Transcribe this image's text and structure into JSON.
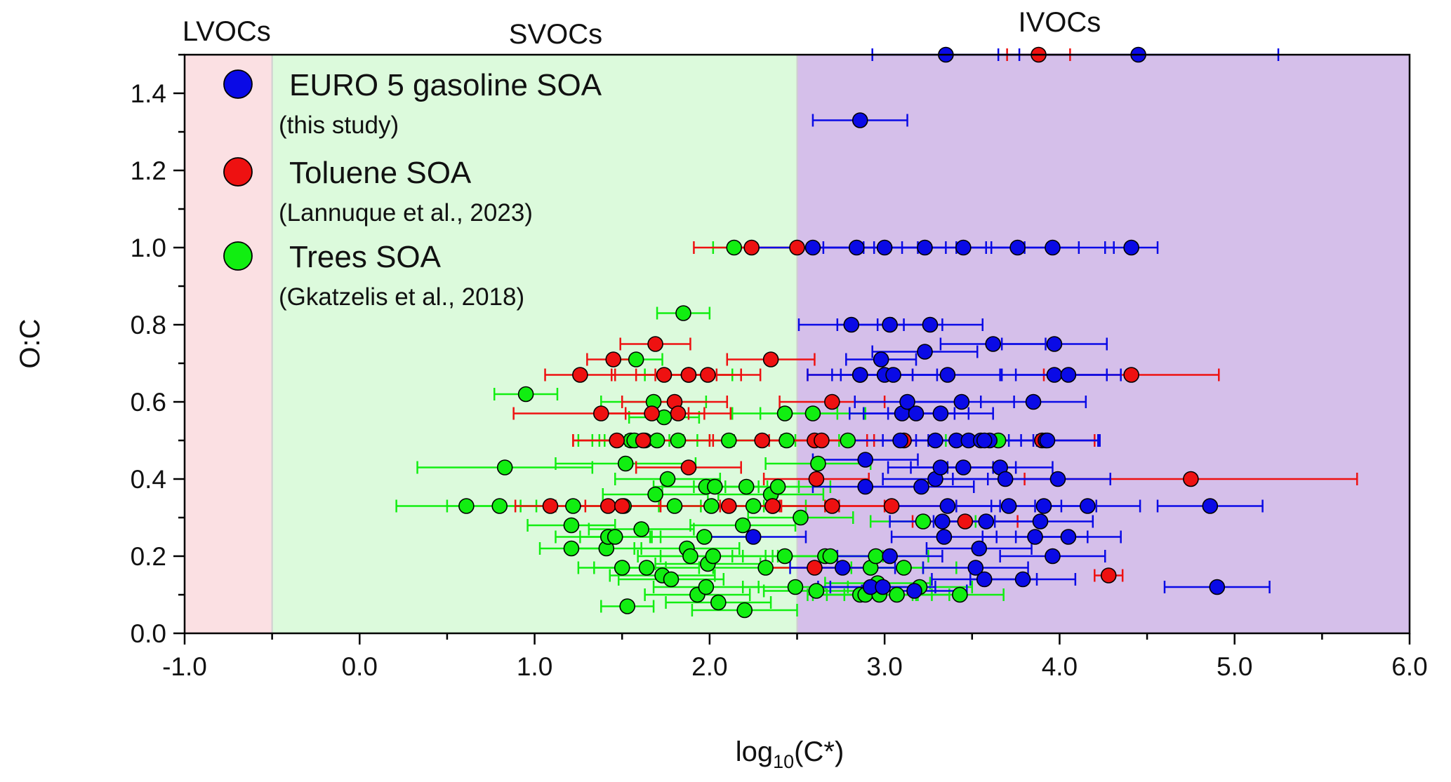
{
  "chart_data": {
    "type": "scatter",
    "xlabel_main": "log",
    "xlabel_sub": "10",
    "xlabel_rest": "(C*)",
    "ylabel": "O:C",
    "xlim": [
      -1.0,
      6.0
    ],
    "ylim": [
      0.0,
      1.5
    ],
    "xticks": [
      -1.0,
      0.0,
      1.0,
      2.0,
      3.0,
      4.0,
      5.0,
      6.0
    ],
    "xtick_labels": [
      "-1.0",
      "0.0",
      "1.0",
      "2.0",
      "3.0",
      "4.0",
      "5.0",
      "6.0"
    ],
    "yticks": [
      0.0,
      0.2,
      0.4,
      0.6,
      0.8,
      1.0,
      1.2,
      1.4
    ],
    "ytick_labels": [
      "0.0",
      "0.2",
      "0.4",
      "0.6",
      "0.8",
      "1.0",
      "1.2",
      "1.4"
    ],
    "regions": [
      {
        "name": "LVOCs",
        "x_from": -1.0,
        "x_to": -0.5,
        "color": "#fbe0e3"
      },
      {
        "name": "SVOCs",
        "x_from": -0.5,
        "x_to": 2.5,
        "color": "#dcfadc"
      },
      {
        "name": "IVOCs",
        "x_from": 2.5,
        "x_to": 6.0,
        "color": "#d5bfea"
      }
    ],
    "legend": [
      {
        "label": "EURO 5 gasoline SOA",
        "sub": "(this study)",
        "color": "#0a0ae6"
      },
      {
        "label": "Toluene SOA",
        "sub": "(Lannuque et al., 2023)",
        "color": "#ee1111"
      },
      {
        "label": "Trees SOA",
        "sub": "(Gkatzelis et al., 2018)",
        "color": "#11ee11"
      }
    ],
    "series": [
      {
        "name": "Trees SOA",
        "color": "#11ee11",
        "points": [
          [
            0.61,
            0.33,
            0.4
          ],
          [
            0.8,
            0.33,
            0.3
          ],
          [
            0.83,
            0.43,
            0.5
          ],
          [
            0.95,
            0.62,
            0.18
          ],
          [
            1.21,
            0.28,
            0.25
          ],
          [
            1.21,
            0.22,
            0.18
          ],
          [
            1.22,
            0.33,
            0.3
          ],
          [
            1.41,
            0.22,
            0.2
          ],
          [
            1.42,
            0.25,
            0.3
          ],
          [
            1.46,
            0.25,
            0.2
          ],
          [
            1.5,
            0.17,
            0.25
          ],
          [
            1.51,
            0.33,
            0.3
          ],
          [
            1.52,
            0.44,
            0.4
          ],
          [
            1.53,
            0.07,
            0.15
          ],
          [
            1.55,
            0.5,
            0.3
          ],
          [
            1.57,
            0.5,
            0.2
          ],
          [
            1.58,
            0.71,
            0.15
          ],
          [
            1.61,
            0.27,
            0.3
          ],
          [
            1.63,
            0.5,
            0.3
          ],
          [
            1.64,
            0.17,
            0.3
          ],
          [
            1.68,
            0.6,
            0.3
          ],
          [
            1.69,
            0.36,
            0.3
          ],
          [
            1.7,
            0.5,
            0.3
          ],
          [
            1.73,
            0.15,
            0.3
          ],
          [
            1.74,
            0.56,
            0.2
          ],
          [
            1.76,
            0.4,
            0.3
          ],
          [
            1.78,
            0.14,
            0.3
          ],
          [
            1.8,
            0.33,
            0.3
          ],
          [
            1.82,
            0.5,
            0.3
          ],
          [
            1.85,
            0.83,
            0.15
          ],
          [
            1.87,
            0.22,
            0.3
          ],
          [
            1.88,
            0.67,
            0.25
          ],
          [
            1.89,
            0.2,
            0.3
          ],
          [
            1.93,
            0.1,
            0.3
          ],
          [
            1.97,
            0.25,
            0.3
          ],
          [
            1.98,
            0.12,
            0.3
          ],
          [
            1.98,
            0.38,
            0.3
          ],
          [
            1.99,
            0.18,
            0.3
          ],
          [
            2.01,
            0.33,
            0.3
          ],
          [
            2.02,
            0.2,
            0.3
          ],
          [
            2.03,
            0.38,
            0.3
          ],
          [
            2.05,
            0.08,
            0.3
          ],
          [
            2.11,
            0.5,
            0.3
          ],
          [
            2.14,
            1.0,
            0.12
          ],
          [
            2.19,
            0.28,
            0.3
          ],
          [
            2.2,
            0.06,
            0.3
          ],
          [
            2.21,
            0.38,
            0.3
          ],
          [
            2.25,
            0.33,
            0.3
          ],
          [
            2.32,
            0.17,
            0.3
          ],
          [
            2.35,
            0.36,
            0.3
          ],
          [
            2.36,
            0.33,
            0.3
          ],
          [
            2.39,
            0.38,
            0.3
          ],
          [
            2.43,
            0.57,
            0.3
          ],
          [
            2.43,
            0.2,
            0.3
          ],
          [
            2.44,
            0.5,
            0.3
          ],
          [
            2.49,
            0.12,
            0.3
          ],
          [
            2.52,
            0.3,
            0.3
          ],
          [
            2.59,
            0.57,
            0.3
          ],
          [
            2.61,
            0.11,
            0.3
          ],
          [
            2.62,
            0.44,
            0.3
          ],
          [
            2.66,
            0.2,
            0.3
          ],
          [
            2.69,
            0.2,
            0.3
          ],
          [
            2.79,
            0.5,
            0.3
          ],
          [
            2.86,
            0.1,
            0.3
          ],
          [
            2.89,
            0.1,
            0.3
          ],
          [
            2.92,
            0.17,
            0.3
          ],
          [
            2.95,
            0.2,
            0.3
          ],
          [
            2.96,
            0.13,
            0.3
          ],
          [
            2.97,
            0.1,
            0.3
          ],
          [
            3.07,
            0.1,
            0.3
          ],
          [
            3.11,
            0.17,
            0.3
          ],
          [
            3.2,
            0.12,
            0.3
          ],
          [
            3.22,
            0.29,
            0.3
          ],
          [
            3.43,
            0.1,
            0.25
          ],
          [
            3.65,
            0.5,
            0.3
          ]
        ]
      },
      {
        "name": "Toluene SOA",
        "color": "#ee1111",
        "points": [
          [
            1.09,
            0.33,
            0.2
          ],
          [
            1.26,
            0.67,
            0.2
          ],
          [
            1.38,
            0.57,
            0.5
          ],
          [
            1.42,
            0.33,
            0.3
          ],
          [
            1.45,
            0.71,
            0.15
          ],
          [
            1.47,
            0.5,
            0.25
          ],
          [
            1.5,
            0.33,
            0.3
          ],
          [
            1.62,
            0.5,
            0.4
          ],
          [
            1.67,
            0.57,
            0.3
          ],
          [
            1.69,
            0.75,
            0.2
          ],
          [
            1.74,
            0.67,
            0.3
          ],
          [
            1.8,
            0.6,
            0.3
          ],
          [
            1.82,
            0.57,
            0.3
          ],
          [
            1.88,
            0.67,
            0.3
          ],
          [
            1.88,
            0.43,
            0.3
          ],
          [
            1.99,
            0.67,
            0.3
          ],
          [
            2.11,
            0.33,
            0.3
          ],
          [
            2.24,
            1.0,
            0.33
          ],
          [
            2.3,
            0.5,
            0.3
          ],
          [
            2.35,
            0.71,
            0.25
          ],
          [
            2.36,
            0.33,
            0.3
          ],
          [
            2.5,
            1.0,
            0.35
          ],
          [
            2.6,
            0.5,
            0.3
          ],
          [
            2.6,
            0.17,
            0.3
          ],
          [
            2.61,
            0.4,
            0.3
          ],
          [
            2.64,
            0.5,
            0.3
          ],
          [
            2.7,
            0.6,
            0.3
          ],
          [
            2.7,
            0.33,
            0.3
          ],
          [
            2.86,
            0.67,
            0.3
          ],
          [
            3.04,
            0.33,
            0.3
          ],
          [
            3.11,
            0.5,
            0.3
          ],
          [
            3.46,
            0.29,
            0.3
          ],
          [
            3.88,
            1.5,
            0.18
          ],
          [
            3.9,
            0.5,
            0.3
          ],
          [
            4.28,
            0.15,
            0.08
          ],
          [
            4.41,
            0.67,
            0.5
          ],
          [
            4.75,
            0.4,
            0.95
          ]
        ]
      },
      {
        "name": "EURO 5 gasoline SOA",
        "color": "#0a0ae6",
        "points": [
          [
            2.25,
            0.25,
            0.3
          ],
          [
            2.59,
            1.0,
            0.35
          ],
          [
            2.76,
            0.17,
            0.3
          ],
          [
            2.81,
            0.8,
            0.3
          ],
          [
            2.84,
            1.0,
            0.35
          ],
          [
            2.86,
            0.67,
            0.3
          ],
          [
            2.86,
            1.33,
            0.27
          ],
          [
            2.89,
            0.45,
            0.3
          ],
          [
            2.89,
            0.38,
            0.3
          ],
          [
            2.92,
            0.12,
            0.3
          ],
          [
            2.99,
            0.12,
            0.3
          ],
          [
            3.0,
            0.67,
            0.3
          ],
          [
            3.0,
            1.0,
            0.35
          ],
          [
            3.03,
            0.8,
            0.3
          ],
          [
            3.03,
            0.2,
            0.3
          ],
          [
            3.05,
            0.67,
            0.3
          ],
          [
            3.09,
            0.5,
            0.3
          ],
          [
            3.1,
            0.57,
            0.3
          ],
          [
            3.13,
            0.6,
            0.3
          ],
          [
            3.17,
            0.11,
            0.3
          ],
          [
            3.18,
            0.57,
            0.3
          ],
          [
            3.21,
            0.38,
            0.3
          ],
          [
            3.23,
            0.73,
            0.3
          ],
          [
            3.23,
            1.0,
            0.35
          ],
          [
            3.26,
            0.8,
            0.3
          ],
          [
            3.29,
            0.5,
            0.3
          ],
          [
            3.29,
            0.4,
            0.3
          ],
          [
            3.32,
            0.43,
            0.3
          ],
          [
            3.32,
            0.57,
            0.3
          ],
          [
            3.33,
            0.29,
            0.3
          ],
          [
            3.34,
            0.25,
            0.3
          ],
          [
            3.36,
            0.33,
            0.3
          ],
          [
            3.36,
            0.67,
            0.3
          ],
          [
            3.41,
            0.5,
            0.3
          ],
          [
            3.44,
            0.6,
            0.3
          ],
          [
            3.45,
            0.43,
            0.3
          ],
          [
            3.45,
            1.0,
            0.35
          ],
          [
            3.48,
            0.5,
            0.3
          ],
          [
            3.52,
            0.17,
            0.3
          ],
          [
            3.54,
            0.22,
            0.3
          ],
          [
            3.55,
            0.5,
            0.3
          ],
          [
            3.57,
            0.14,
            0.3
          ],
          [
            3.58,
            0.29,
            0.3
          ],
          [
            3.6,
            0.5,
            0.3
          ],
          [
            3.62,
            0.75,
            0.3
          ],
          [
            3.66,
            0.43,
            0.3
          ],
          [
            3.69,
            0.4,
            0.3
          ],
          [
            3.71,
            0.33,
            0.3
          ],
          [
            3.76,
            1.0,
            0.35
          ],
          [
            3.79,
            0.14,
            0.3
          ],
          [
            3.85,
            0.6,
            0.3
          ],
          [
            3.86,
            0.25,
            0.3
          ],
          [
            3.89,
            0.29,
            0.3
          ],
          [
            3.91,
            0.33,
            0.3
          ],
          [
            3.92,
            0.5,
            0.3
          ],
          [
            3.96,
            0.2,
            0.3
          ],
          [
            3.96,
            1.0,
            0.35
          ],
          [
            3.97,
            0.75,
            0.3
          ],
          [
            3.97,
            0.67,
            0.3
          ],
          [
            3.99,
            0.4,
            0.3
          ],
          [
            4.05,
            0.67,
            0.3
          ],
          [
            4.05,
            0.25,
            0.3
          ],
          [
            4.16,
            0.33,
            0.3
          ],
          [
            4.41,
            1.0,
            0.15
          ],
          [
            4.86,
            0.33,
            0.3
          ],
          [
            4.9,
            0.12,
            0.3
          ],
          [
            3.35,
            1.5,
            0.42
          ],
          [
            4.45,
            1.5,
            0.8
          ],
          [
            2.98,
            0.71,
            0.2
          ],
          [
            3.93,
            0.5,
            0.3
          ],
          [
            3.57,
            0.5,
            0.3
          ]
        ]
      }
    ]
  }
}
